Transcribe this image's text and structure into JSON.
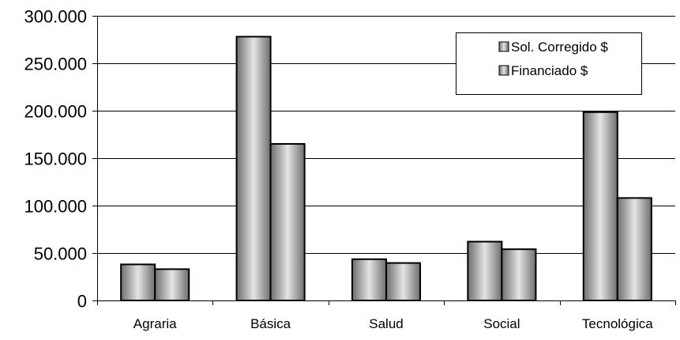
{
  "chart_data": {
    "type": "bar",
    "title": "",
    "xlabel": "",
    "ylabel": "",
    "categories": [
      "Agraria",
      "Básica",
      "Salud",
      "Social",
      "Tecnológica"
    ],
    "series": [
      {
        "name": "Sol. Corregido $",
        "values": [
          38000,
          278000,
          43500,
          62000,
          198500
        ]
      },
      {
        "name": "Financiado $",
        "values": [
          33000,
          165000,
          39500,
          54000,
          108000
        ]
      }
    ],
    "ylim": [
      0,
      300000
    ],
    "yticks": [
      0,
      50000,
      100000,
      150000,
      200000,
      250000,
      300000
    ],
    "ytick_labels": [
      "0",
      "50.000",
      "100.000",
      "150.000",
      "200.000",
      "250.000",
      "300.000"
    ],
    "grid": true,
    "legend_position": "top-right",
    "colors": {
      "bar_dark": "#6e6e6e",
      "bar_light": "#e4e4e4",
      "gridline": "#000000",
      "axis": "#000000"
    }
  }
}
